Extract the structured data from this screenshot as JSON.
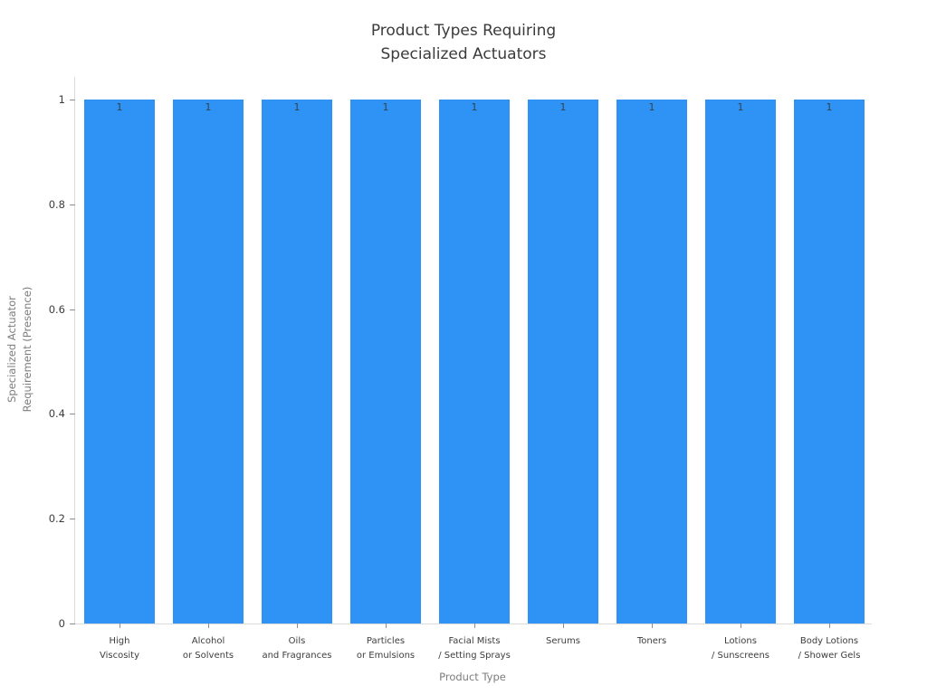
{
  "chart_data": {
    "type": "bar",
    "title": "Product Types Requiring\nSpecialized Actuators",
    "xlabel": "Product Type",
    "ylabel": "Specialized Actuator\nRequirement (Presence)",
    "categories": [
      "High\nViscosity",
      "Alcohol\nor Solvents",
      "Oils\nand Fragrances",
      "Particles\nor Emulsions",
      "Facial Mists\n/ Setting Sprays",
      "Serums",
      "Toners",
      "Lotions\n/ Sunscreens",
      "Body Lotions\n/ Shower Gels"
    ],
    "values": [
      1,
      1,
      1,
      1,
      1,
      1,
      1,
      1,
      1
    ],
    "bar_value_labels": [
      "1",
      "1",
      "1",
      "1",
      "1",
      "1",
      "1",
      "1",
      "1"
    ],
    "yticks": [
      "0",
      "0.2",
      "0.4",
      "0.6",
      "0.8",
      "1"
    ],
    "ytick_values": [
      0,
      0.2,
      0.4,
      0.6,
      0.8,
      1
    ],
    "ylim": [
      0,
      1.043
    ],
    "bar_color": "#2e93f5",
    "grid": false,
    "legend": null
  }
}
